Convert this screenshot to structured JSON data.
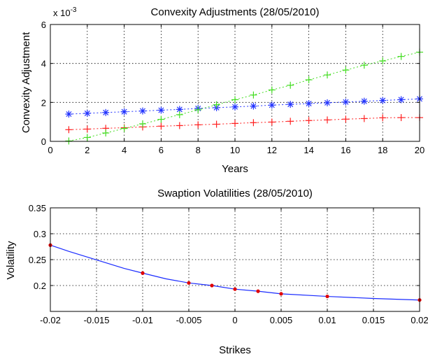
{
  "chart_data": [
    {
      "type": "line",
      "title": "Convexity Adjustments (28/05/2010)",
      "xlabel": "Years",
      "ylabel": "Convexity Adjustment",
      "y_exponent_label": "x 10",
      "y_exponent_power": "-3",
      "xlim": [
        0,
        20
      ],
      "ylim": [
        0,
        6
      ],
      "xticks": [
        "0",
        "2",
        "4",
        "6",
        "8",
        "10",
        "12",
        "14",
        "16",
        "18",
        "20"
      ],
      "yticks": [
        "0",
        "2",
        "4",
        "6"
      ],
      "grid": true,
      "x": [
        1,
        2,
        3,
        4,
        5,
        6,
        7,
        8,
        9,
        10,
        11,
        12,
        13,
        14,
        15,
        16,
        17,
        18,
        19,
        20
      ],
      "series": [
        {
          "color": "#2233ff",
          "marker": "*",
          "values": [
            1.4,
            1.44,
            1.48,
            1.52,
            1.56,
            1.6,
            1.64,
            1.69,
            1.73,
            1.77,
            1.81,
            1.86,
            1.9,
            1.94,
            1.98,
            2.02,
            2.06,
            2.1,
            2.14,
            2.18
          ]
        },
        {
          "color": "#ff2020",
          "marker": "+",
          "values": [
            0.6,
            0.63,
            0.67,
            0.7,
            0.74,
            0.78,
            0.81,
            0.85,
            0.88,
            0.92,
            0.96,
            0.99,
            1.03,
            1.07,
            1.1,
            1.14,
            1.17,
            1.21,
            1.22,
            1.22
          ]
        },
        {
          "color": "#44dd22",
          "marker": "+",
          "values": [
            0.02,
            0.2,
            0.43,
            0.66,
            0.9,
            1.13,
            1.37,
            1.62,
            1.88,
            2.14,
            2.38,
            2.64,
            2.88,
            3.16,
            3.41,
            3.66,
            3.91,
            4.13,
            4.36,
            4.58
          ]
        }
      ]
    },
    {
      "type": "line",
      "title": "Swaption Volatilities (28/05/2010)",
      "xlabel": "Strikes",
      "ylabel": "Volatility",
      "xlim": [
        -0.02,
        0.02
      ],
      "ylim": [
        0.15,
        0.35
      ],
      "xticks": [
        "-0.02",
        "-0.015",
        "-0.01",
        "-0.005",
        "0",
        "0.005",
        "0.01",
        "0.015",
        "0.02"
      ],
      "yticks": [
        "0.2",
        "0.25",
        "0.3",
        "0.35"
      ],
      "grid": true,
      "series": [
        {
          "color": "#1a2bff",
          "x": [
            -0.02,
            -0.019,
            -0.018,
            -0.016,
            -0.014,
            -0.012,
            -0.01,
            -0.0075,
            -0.005,
            -0.0025,
            0,
            0.0025,
            0.005,
            0.01,
            0.015,
            0.02
          ],
          "values": [
            0.278,
            0.272,
            0.266,
            0.255,
            0.244,
            0.233,
            0.224,
            0.213,
            0.205,
            0.2,
            0.193,
            0.189,
            0.184,
            0.179,
            0.175,
            0.172
          ]
        }
      ],
      "markers": {
        "color": "#e00000",
        "x": [
          -0.02,
          -0.01,
          -0.005,
          -0.0025,
          0,
          0.0025,
          0.005,
          0.01,
          0.02
        ],
        "values": [
          0.278,
          0.224,
          0.205,
          0.2,
          0.193,
          0.189,
          0.184,
          0.179,
          0.172
        ]
      }
    }
  ]
}
